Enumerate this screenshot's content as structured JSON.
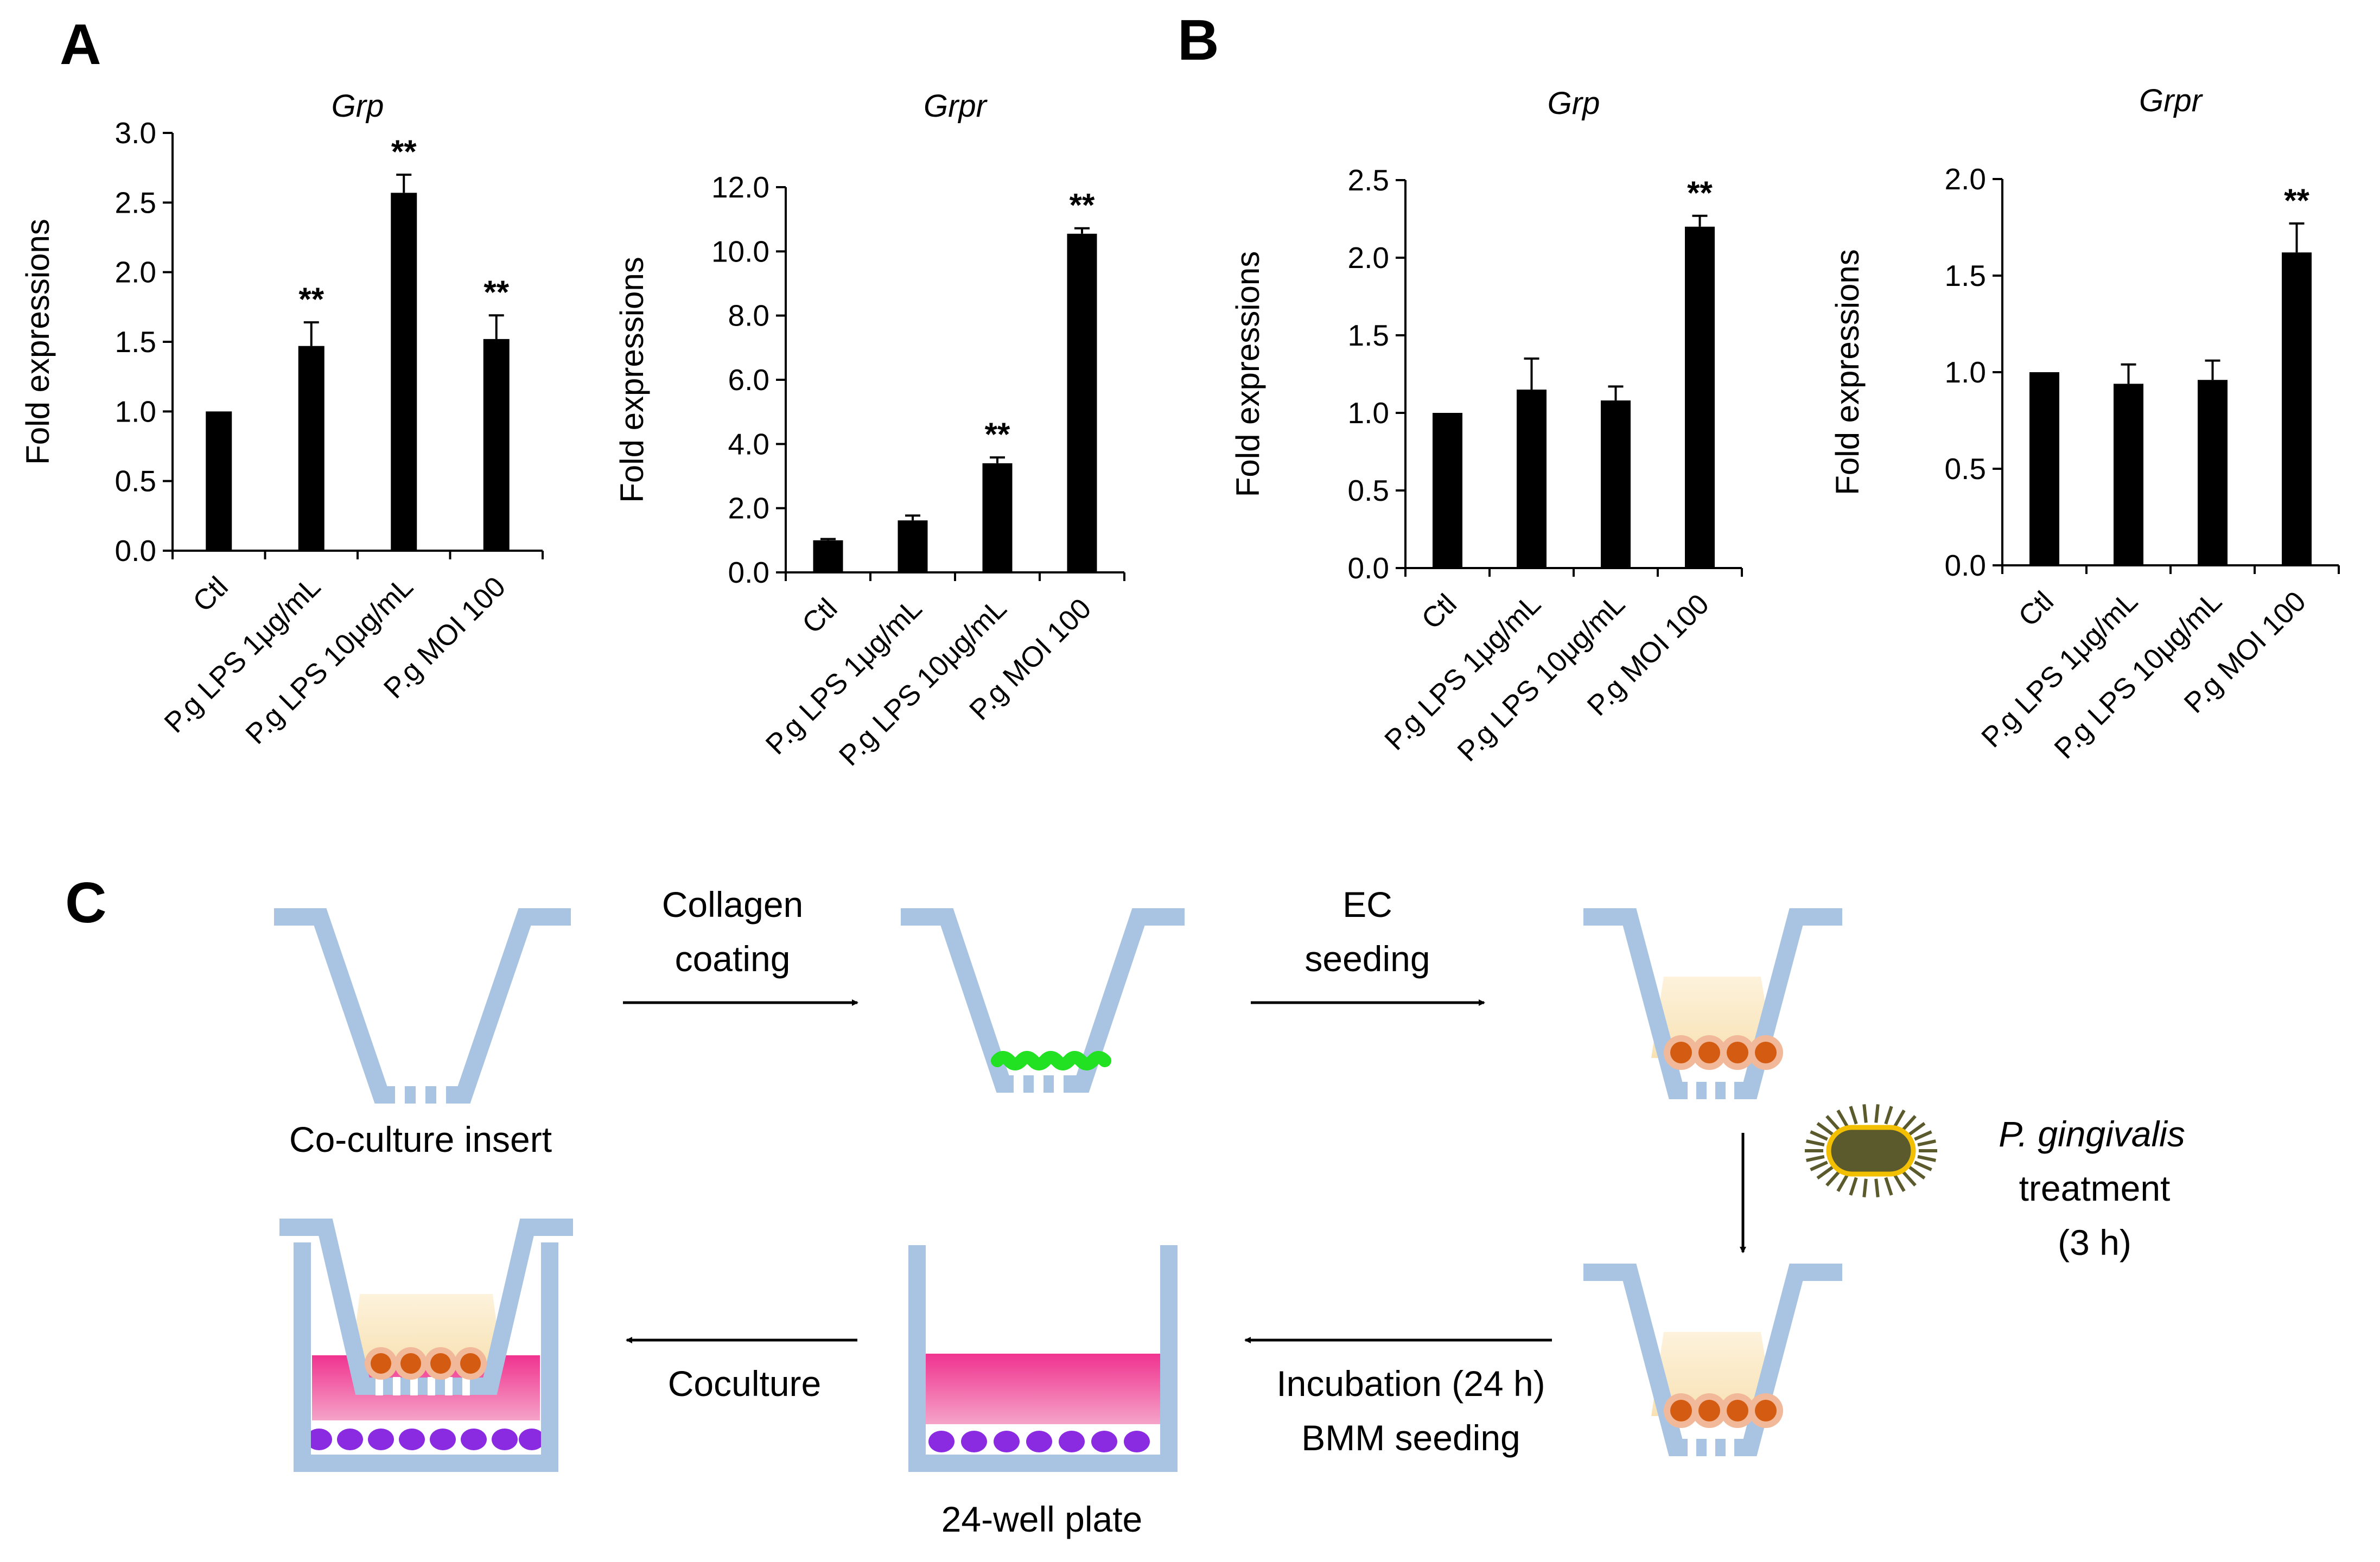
{
  "panel_labels": {
    "a": "A",
    "b": "B",
    "c": "C"
  },
  "chart_data": [
    {
      "type": "bar",
      "panel": "A",
      "title": "Grp",
      "ylabel": "Fold expressions",
      "categories": [
        "Ctl",
        "P.g LPS 1μg/mL",
        "P.g LPS 10μg/mL",
        "P.g MOI 100"
      ],
      "values": [
        1.0,
        1.47,
        2.57,
        1.52
      ],
      "errors": [
        0.0,
        0.17,
        0.13,
        0.17
      ],
      "significance": [
        "",
        "**",
        "**",
        "**"
      ],
      "ylim": [
        0,
        3.0
      ],
      "yticks": [
        "0.0",
        "0.5",
        "1.0",
        "1.5",
        "2.0",
        "2.5",
        "3.0"
      ],
      "grid": false,
      "color": "#000000"
    },
    {
      "type": "bar",
      "panel": "A",
      "title": "Grpr",
      "ylabel": "Fold expressions",
      "categories": [
        "Ctl",
        "P.g LPS 1μg/mL",
        "P.g LPS 10μg/mL",
        "P.g MOI 100"
      ],
      "values": [
        1.0,
        1.62,
        3.4,
        10.55
      ],
      "errors": [
        0.04,
        0.15,
        0.18,
        0.17
      ],
      "significance": [
        "",
        "",
        "**",
        "**"
      ],
      "ylim": [
        0,
        12.0
      ],
      "yticks": [
        "0.0",
        "2.0",
        "4.0",
        "6.0",
        "8.0",
        "10.0",
        "12.0"
      ],
      "grid": false,
      "color": "#000000"
    },
    {
      "type": "bar",
      "panel": "B",
      "title": "Grp",
      "ylabel": "Fold expressions",
      "categories": [
        "Ctl",
        "P.g LPS 1μg/mL",
        "P.g LPS 10μg/mL",
        "P.g MOI 100"
      ],
      "values": [
        1.0,
        1.15,
        1.08,
        2.2
      ],
      "errors": [
        0.0,
        0.2,
        0.09,
        0.07
      ],
      "significance": [
        "",
        "",
        "",
        "**"
      ],
      "ylim": [
        0,
        2.5
      ],
      "yticks": [
        "0.0",
        "0.5",
        "1.0",
        "1.5",
        "2.0",
        "2.5"
      ],
      "grid": false,
      "color": "#000000"
    },
    {
      "type": "bar",
      "panel": "B",
      "title": "Grpr",
      "ylabel": "Fold expressions",
      "categories": [
        "Ctl",
        "P.g LPS 1μg/mL",
        "P.g LPS 10μg/mL",
        "P.g MOI 100"
      ],
      "values": [
        1.0,
        0.94,
        0.96,
        1.62
      ],
      "errors": [
        0.0,
        0.1,
        0.1,
        0.15
      ],
      "significance": [
        "",
        "",
        "",
        "**"
      ],
      "ylim": [
        0,
        2.0
      ],
      "yticks": [
        "0.0",
        "0.5",
        "1.0",
        "1.5",
        "2.0"
      ],
      "grid": false,
      "color": "#000000"
    }
  ],
  "diagram": {
    "step1_label": "Co-culture insert",
    "arrow1": {
      "line1": "Collagen",
      "line2": "coating"
    },
    "arrow2": {
      "line1": "EC",
      "line2": "seeding"
    },
    "treatment": {
      "line1": "P. gingivalis",
      "line2": "treatment",
      "line3": "(3 h)"
    },
    "arrow4": {
      "line1": "Incubation  (24 h)",
      "line2": "BMM seeding"
    },
    "plate_label": "24-well  plate",
    "arrow5": "Coculture",
    "colors": {
      "insert": "#a8c4e2",
      "collagen": "#22e022",
      "medium": "#fbe9c6",
      "ec_cell": "#d35c12",
      "ec_halo": "#f2b89a",
      "plate_medium": "#f0338f",
      "bmm_cell": "#8a2be2",
      "bacterium": "#5a5a2c",
      "bacterium_rim": "#f2c000"
    }
  }
}
